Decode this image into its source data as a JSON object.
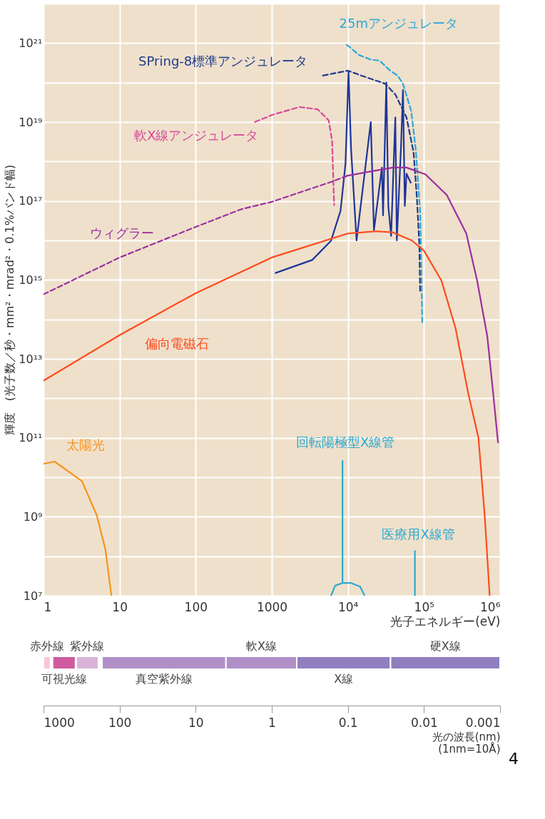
{
  "chart_data": [
    {
      "type": "line",
      "xlabel": "光子エネルギー(eV)",
      "ylabel": "輝度　(光子数／秒・mm²・mrad²・0.1%バンド幅)",
      "xlim": [
        1,
        1000000
      ],
      "ylim": [
        10000000,
        1e+22
      ],
      "log": "xy",
      "grid": true,
      "legend": false,
      "xticks": [
        1,
        10,
        100,
        1000,
        {
          "value": 10000,
          "label": "10⁴"
        },
        {
          "value": 100000,
          "label": "10⁵"
        },
        {
          "value": 1000000,
          "label": "10⁶"
        }
      ],
      "yticks": [
        {
          "value": 10000000.0,
          "label": "10⁷"
        },
        {
          "value": 100000000.0,
          "label": null
        },
        {
          "value": 1000000000.0,
          "label": "10⁹"
        },
        {
          "value": 10000000000.0,
          "label": null
        },
        {
          "value": 100000000000.0,
          "label": "10¹¹"
        },
        {
          "value": 1000000000000.0,
          "label": null
        },
        {
          "value": 10000000000000.0,
          "label": "10¹³"
        },
        {
          "value": 100000000000000.0,
          "label": null
        },
        {
          "value": 1000000000000000.0,
          "label": "10¹⁵"
        },
        {
          "value": 1e+16,
          "label": null
        },
        {
          "value": 1e+17,
          "label": "10¹⁷"
        },
        {
          "value": 1e+18,
          "label": null
        },
        {
          "value": 1e+19,
          "label": "10¹⁹"
        },
        {
          "value": 1e+20,
          "label": null
        },
        {
          "value": 1e+21,
          "label": "10²¹"
        },
        {
          "value": 1e+22,
          "label": null
        }
      ],
      "series": [
        {
          "name": "25mアンジュレータ",
          "color": "#2aa8d8",
          "line_style": "dashed",
          "x": [
            9600,
            10500,
            14000,
            20000,
            26000,
            36000,
            45000,
            53000,
            68000,
            78000,
            89000,
            93000,
            95000
          ],
          "values": [
            9e+20,
            8e+20,
            5e+20,
            3.8e+20,
            3.6e+20,
            2e+20,
            1.5e+20,
            9.3e+19,
            1.9e+19,
            2e+18,
            5.6e+16,
            950000000000000.0,
            74000000000000.0
          ]
        },
        {
          "name": "SPring-8標準アンジュレータ",
          "color": "#1e3a8c",
          "line_style": "dashed",
          "x": [
            4700,
            10000,
            15000,
            31000,
            42000,
            59000,
            73000,
            81000,
            87000,
            89000
          ],
          "values": [
            1.5e+20,
            2e+20,
            1.5e+20,
            9.3e+19,
            5e+19,
            1.3e+19,
            1.7e+18,
            1.1e+17,
            7400000000000000.0,
            460000000000000.0
          ]
        },
        {
          "color": "#1e3599",
          "line_style": "solid",
          "x": [
            1120,
            3400,
            6000,
            8000,
            9300,
            10200,
            11000,
            13000,
            20000,
            22000,
            28000,
            29000,
            32000,
            34000,
            37000,
            42000,
            44000,
            50000,
            53000,
            56000,
            59000,
            67000
          ],
          "values": [
            1500000000000000.0,
            3200000000000000.0,
            9800000000000000.0,
            5.6e+16,
            8.7e+17,
            1.9e+20,
            2.2e+18,
            1e+16,
            1e+19,
            1.8e+16,
            7e+17,
            4.3e+16,
            1e+20,
            7.5e+16,
            1.3e+16,
            1.3e+19,
            1e+16,
            2.5e+18,
            6.5e+19,
            7.5e+16,
            4.9e+17,
            2.9e+17
          ]
        },
        {
          "name": "軟X線アンジュレータ",
          "color": "#d9479b",
          "line_style": "dashed",
          "x": [
            600,
            1000,
            2300,
            4000,
            5600,
            6200,
            6600
          ],
          "values": [
            1e+19,
            1.5e+19,
            2.4e+19,
            2.1e+19,
            1.1e+19,
            3.3e+18,
            7.8e+16
          ]
        },
        {
          "name": "ウィグラー",
          "color": "#9c2f9e",
          "line_style": "dashed",
          "x": [
            1,
            10,
            100,
            400,
            1000,
            6500,
            10000
          ],
          "values": [
            430000000000000.0,
            3700000000000000.0,
            2.2e+16,
            6.2e+16,
            9.5e+16,
            3.2e+17,
            4.4e+17
          ]
        },
        {
          "color": "#9c2f9e",
          "line_style": "solid",
          "x": [
            10000,
            39000,
            59000,
            105000,
            200000,
            360000,
            500000,
            680000,
            810000,
            940000
          ],
          "values": [
            4.4e+17,
            7e+17,
            7e+17,
            4.7e+17,
            1.4e+17,
            1.5e+16,
            950000000000000.0,
            37000000000000.0,
            1400000000000.0,
            76000000000.0
          ]
        },
        {
          "name": "偏向電磁石",
          "color": "#ff4a1c",
          "line_style": "solid",
          "x": [
            1,
            10,
            100,
            1000,
            10000,
            23500,
            39000,
            69000,
            100000,
            170000,
            260000,
            380000,
            520000,
            630000,
            730000
          ],
          "values": [
            2800000000000.0,
            40000000000000.0,
            460000000000000.0,
            3700000000000000.0,
            1.5e+16,
            1.7e+16,
            1.6e+16,
            1e+16,
            5500000000000000.0,
            950000000000000.0,
            60000000000000.0,
            1400000000000.0,
            100000000000.0,
            1000000000.0,
            10000000.0
          ]
        },
        {
          "name": "太陽光",
          "color": "#f7941d",
          "line_style": "solid",
          "x": [
            1,
            1.4,
            3.2,
            5,
            6.5,
            7.8
          ],
          "values": [
            22000000000.0,
            25000000000.0,
            8000000000.0,
            1100000000.0,
            150000000.0,
            10000000.0
          ]
        },
        {
          "name": "回転陽極型X線管",
          "color": "#2aaad2",
          "line_style": "solid",
          "x": [
            6000,
            6800,
            8500,
            8500,
            8500,
            11000,
            14500,
            16600
          ],
          "values": [
            10000000.0,
            18000000.0,
            21000000.0,
            26000000000.0,
            21000000.0,
            21000000.0,
            17000000.0,
            10000000.0
          ]
        },
        {
          "name": "医療用X線管",
          "color": "#2aaad2",
          "line_style": "solid",
          "x": [
            76000,
            76000
          ],
          "values": [
            135000000.0,
            10000000.0
          ]
        }
      ]
    },
    {
      "type": "bar",
      "orientation": "horizontal",
      "categories": [
        null
      ],
      "log": "x",
      "legend": false,
      "xlabel": "光の波長(nm)\n(1nm=10Å)",
      "xlim": [
        1000,
        0.001
      ],
      "xticks": [
        1000,
        100,
        10,
        1,
        0.1,
        0.01,
        0.001
      ],
      "annotations": [
        "4"
      ],
      "series": [
        {
          "name": "赤外線",
          "color": "#f9c4dc",
          "base": [
            810
          ],
          "values": [
            190
          ]
        },
        {
          "name": "可視光線",
          "color": "#d05aa0",
          "base": [
            380
          ],
          "values": [
            380
          ]
        },
        {
          "name": "紫外線",
          "color": "#d9b4d8",
          "base": [
            190
          ],
          "values": [
            180
          ]
        },
        {
          "name": "真空紫外線",
          "color": "#b08fc8",
          "base": [
            4
          ],
          "values": [
            166
          ]
        },
        {
          "name": "軟X線",
          "color": "#b08fc8",
          "base": [
            0.47
          ],
          "values": [
            3.53
          ]
        },
        {
          "name": "X線",
          "color": "#8f7fbf",
          "base": [
            0.0275
          ],
          "values": [
            0.4425
          ]
        },
        {
          "name": "硬X線",
          "color": "#8f7fbf",
          "base": [
            0.001
          ],
          "values": [
            0.0265
          ]
        }
      ]
    }
  ]
}
